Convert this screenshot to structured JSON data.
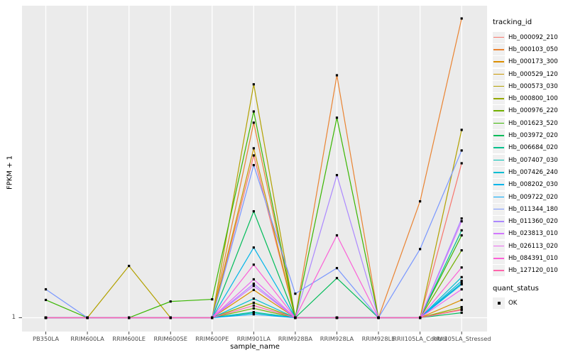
{
  "chart_data": {
    "type": "line",
    "title": "",
    "xlabel": "sample_name",
    "ylabel": "FPKM + 1",
    "y_tick_labels": [
      "1"
    ],
    "axis_note": "y axis shows FPKM + 1; only the value 1 is labeled, series heights below are relative heights above the 1-baseline (0 = FPKM+1 of 1, 1 = panel top)",
    "grid": "white major gridlines on gray panel",
    "panel_bg": "#ebebeb",
    "gridline_color": "#ffffff",
    "tick_color": "#333333",
    "tick_text_color": "#4d4d4d",
    "marker_color": "#000000",
    "categories": [
      "PB350LA",
      "RRIM600LA",
      "RRIM600LE",
      "RRIM600SE",
      "RRIM600PE",
      "RRIM901LA",
      "RRIM928BA",
      "RRIM928LA",
      "RRIM928LE",
      "RRII105LA_Control",
      "RRII105LA_Stressed"
    ],
    "legend": {
      "title": "tracking_id",
      "position": "right"
    },
    "quant_legend": {
      "title": "quant_status",
      "items": [
        {
          "label": "OK",
          "marker": "black-square"
        }
      ]
    },
    "series": [
      {
        "name": "Hb_000092_210",
        "color": "#F8766D",
        "values": [
          0,
          0,
          0,
          0,
          0,
          0.52,
          0,
          0,
          0,
          0,
          0.495
        ]
      },
      {
        "name": "Hb_000103_050",
        "color": "#EA8331",
        "values": [
          0,
          0,
          0,
          0,
          0,
          0.625,
          0,
          0.777,
          0,
          0.373,
          0.959
        ]
      },
      {
        "name": "Hb_000173_300",
        "color": "#DB8E00",
        "values": [
          0,
          0,
          0,
          0,
          0,
          0.089,
          0,
          0,
          0,
          0,
          0.057
        ]
      },
      {
        "name": "Hb_000529_120",
        "color": "#C99800",
        "values": [
          0,
          0,
          0,
          0,
          0,
          0.543,
          0,
          0,
          0,
          0,
          0.027
        ]
      },
      {
        "name": "Hb_000573_030",
        "color": "#B2A100",
        "values": [
          0,
          0,
          0.166,
          0,
          0,
          0.748,
          0,
          0,
          0,
          0,
          0.602
        ]
      },
      {
        "name": "Hb_000800_100",
        "color": "#95A900",
        "values": [
          0,
          0,
          0,
          0,
          0,
          0.048,
          0,
          0,
          0,
          0,
          0.034
        ]
      },
      {
        "name": "Hb_000976_220",
        "color": "#72B000",
        "values": [
          0,
          0,
          0,
          0,
          0,
          0.03,
          0,
          0,
          0,
          0,
          0.216
        ]
      },
      {
        "name": "Hb_001623_520",
        "color": "#39B600",
        "values": [
          0.057,
          0,
          0,
          0.052,
          0.059,
          0.661,
          0,
          0.641,
          0,
          0,
          0.264
        ]
      },
      {
        "name": "Hb_003972_020",
        "color": "#00BC59",
        "values": [
          0,
          0,
          0,
          0,
          0,
          0.341,
          0,
          0.127,
          0,
          0,
          0.016
        ]
      },
      {
        "name": "Hb_006684_020",
        "color": "#00C08D",
        "values": [
          0,
          0,
          0,
          0,
          0,
          0.016,
          0,
          0,
          0,
          0,
          0.28
        ]
      },
      {
        "name": "Hb_007407_030",
        "color": "#00C0B4",
        "values": [
          0,
          0,
          0,
          0,
          0,
          0.018,
          0,
          0,
          0,
          0,
          0.111
        ]
      },
      {
        "name": "Hb_007426_240",
        "color": "#00BDD2",
        "values": [
          0,
          0,
          0,
          0,
          0,
          0.061,
          0,
          0,
          0,
          0,
          0.13
        ]
      },
      {
        "name": "Hb_008202_030",
        "color": "#00B5E9",
        "values": [
          0,
          0,
          0,
          0,
          0,
          0.225,
          0,
          0,
          0,
          0,
          0.118
        ]
      },
      {
        "name": "Hb_009722_020",
        "color": "#00A7F7",
        "values": [
          0,
          0,
          0,
          0,
          0,
          0.011,
          0,
          0,
          0,
          0,
          0.107
        ]
      },
      {
        "name": "Hb_011344_180",
        "color": "#7997FF",
        "values": [
          0.091,
          0,
          0,
          0,
          0,
          0.489,
          0.077,
          0.159,
          0,
          0.22,
          0.536
        ]
      },
      {
        "name": "Hb_011360_020",
        "color": "#AC88FF",
        "values": [
          0,
          0,
          0,
          0,
          0,
          0.109,
          0,
          0.457,
          0,
          0,
          0.318
        ]
      },
      {
        "name": "Hb_023813_010",
        "color": "#D277FF",
        "values": [
          0,
          0,
          0,
          0,
          0,
          0.102,
          0,
          0,
          0,
          0,
          0.309
        ]
      },
      {
        "name": "Hb_026113_020",
        "color": "#EC69EF",
        "values": [
          0,
          0,
          0,
          0,
          0,
          0.123,
          0,
          0,
          0,
          0,
          0.091
        ]
      },
      {
        "name": "Hb_084391_010",
        "color": "#FB61D7",
        "values": [
          0,
          0,
          0,
          0,
          0,
          0.17,
          0,
          0.264,
          0,
          0,
          0.161
        ]
      },
      {
        "name": "Hb_127120_010",
        "color": "#FF65AC",
        "values": [
          0,
          0,
          0,
          0,
          0,
          0.039,
          0,
          0,
          0,
          0,
          0.025
        ]
      }
    ]
  }
}
